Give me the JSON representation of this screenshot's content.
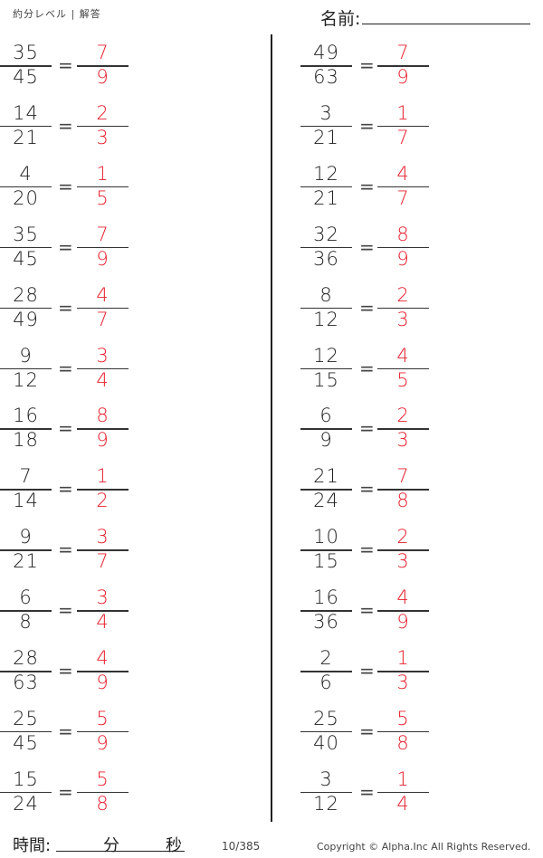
{
  "header": {
    "title": "約分レベル | 解答",
    "name_label": "名前:"
  },
  "footer": {
    "time_label": "時間:",
    "minutes_label": "分",
    "seconds_label": "秒",
    "page": "10/385",
    "copyright": "Copyright ©  Alpha.Inc All Rights Reserved."
  },
  "colors": {
    "answer": "#e8202e",
    "text": "#222222"
  },
  "left": [
    {
      "n": "35",
      "d": "45",
      "an": "7",
      "ad": "9"
    },
    {
      "n": "14",
      "d": "21",
      "an": "2",
      "ad": "3"
    },
    {
      "n": "4",
      "d": "20",
      "an": "1",
      "ad": "5"
    },
    {
      "n": "35",
      "d": "45",
      "an": "7",
      "ad": "9"
    },
    {
      "n": "28",
      "d": "49",
      "an": "4",
      "ad": "7"
    },
    {
      "n": "9",
      "d": "12",
      "an": "3",
      "ad": "4"
    },
    {
      "n": "16",
      "d": "18",
      "an": "8",
      "ad": "9"
    },
    {
      "n": "7",
      "d": "14",
      "an": "1",
      "ad": "2"
    },
    {
      "n": "9",
      "d": "21",
      "an": "3",
      "ad": "7"
    },
    {
      "n": "6",
      "d": "8",
      "an": "3",
      "ad": "4"
    },
    {
      "n": "28",
      "d": "63",
      "an": "4",
      "ad": "9"
    },
    {
      "n": "25",
      "d": "45",
      "an": "5",
      "ad": "9"
    },
    {
      "n": "15",
      "d": "24",
      "an": "5",
      "ad": "8"
    }
  ],
  "right": [
    {
      "n": "49",
      "d": "63",
      "an": "7",
      "ad": "9"
    },
    {
      "n": "3",
      "d": "21",
      "an": "1",
      "ad": "7"
    },
    {
      "n": "12",
      "d": "21",
      "an": "4",
      "ad": "7"
    },
    {
      "n": "32",
      "d": "36",
      "an": "8",
      "ad": "9"
    },
    {
      "n": "8",
      "d": "12",
      "an": "2",
      "ad": "3"
    },
    {
      "n": "12",
      "d": "15",
      "an": "4",
      "ad": "5"
    },
    {
      "n": "6",
      "d": "9",
      "an": "2",
      "ad": "3"
    },
    {
      "n": "21",
      "d": "24",
      "an": "7",
      "ad": "8"
    },
    {
      "n": "10",
      "d": "15",
      "an": "2",
      "ad": "3"
    },
    {
      "n": "16",
      "d": "36",
      "an": "4",
      "ad": "9"
    },
    {
      "n": "2",
      "d": "6",
      "an": "1",
      "ad": "3"
    },
    {
      "n": "25",
      "d": "40",
      "an": "5",
      "ad": "8"
    },
    {
      "n": "3",
      "d": "12",
      "an": "1",
      "ad": "4"
    }
  ],
  "equals": "="
}
